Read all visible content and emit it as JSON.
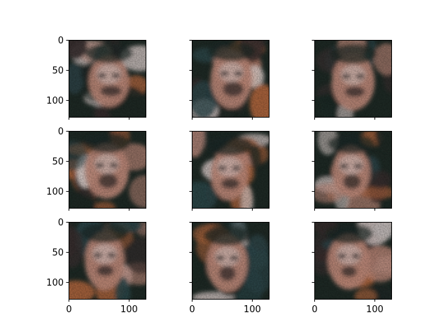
{
  "chart_data": {
    "type": "image-grid",
    "rows": 3,
    "cols": 3,
    "xlim": [
      0,
      128
    ],
    "ylim": [
      128,
      0
    ],
    "x_ticks": [
      0,
      100
    ],
    "x_tick_labels": [
      "0",
      "100"
    ],
    "y_ticks": [
      0,
      50,
      100
    ],
    "y_tick_labels": [
      "0",
      "50",
      "100"
    ],
    "x_labels_shown_on_row": 2,
    "y_labels_shown_on_col": 0,
    "panels": [
      {
        "row": 0,
        "col": 0,
        "content": "generated-face-image"
      },
      {
        "row": 0,
        "col": 1,
        "content": "generated-face-image"
      },
      {
        "row": 0,
        "col": 2,
        "content": "generated-face-image"
      },
      {
        "row": 1,
        "col": 0,
        "content": "generated-face-image"
      },
      {
        "row": 1,
        "col": 1,
        "content": "generated-face-image"
      },
      {
        "row": 1,
        "col": 2,
        "content": "generated-face-image"
      },
      {
        "row": 2,
        "col": 0,
        "content": "generated-face-image"
      },
      {
        "row": 2,
        "col": 1,
        "content": "generated-face-image"
      },
      {
        "row": 2,
        "col": 2,
        "content": "generated-face-image"
      }
    ],
    "palette": {
      "dark": "#1f2b26",
      "skin": "#c89080",
      "light": "#eadbd8",
      "shadow": "#3a3030",
      "accent": "#b86a40",
      "teal": "#2f4a4e"
    }
  }
}
